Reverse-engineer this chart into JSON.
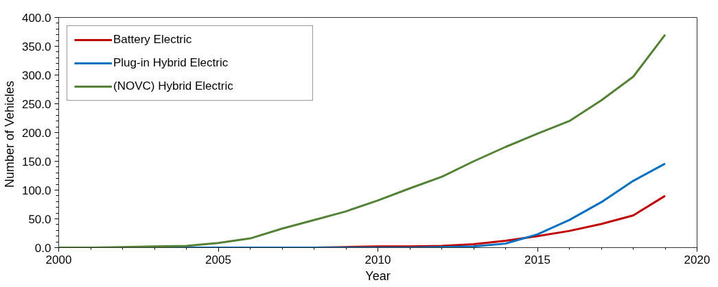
{
  "chart_data": {
    "type": "line",
    "xlabel": "Year",
    "ylabel": "Number  of Vehicles",
    "x": [
      2000,
      2001,
      2002,
      2003,
      2004,
      2005,
      2006,
      2007,
      2008,
      2009,
      2010,
      2011,
      2012,
      2013,
      2014,
      2015,
      2016,
      2017,
      2018,
      2019
    ],
    "series": [
      {
        "name": "Battery Electric",
        "color": "#c00000",
        "values": [
          null,
          null,
          null,
          null,
          null,
          null,
          null,
          0,
          0,
          1,
          2,
          2,
          3,
          6,
          12,
          20,
          29,
          41,
          56,
          90
        ]
      },
      {
        "name": "Plug-in Hybrid Electric",
        "color": "#0070c0",
        "values": [
          null,
          null,
          null,
          0,
          0,
          0,
          0,
          0,
          0,
          0,
          0,
          0,
          1,
          2,
          7,
          23,
          48,
          79,
          116,
          146
        ]
      },
      {
        "name": "(NOVC) Hybrid Electric",
        "color": "#538135",
        "values": [
          0,
          0,
          1,
          2,
          3,
          8,
          16,
          33,
          48,
          63,
          82,
          103,
          123,
          150,
          175,
          198,
          220,
          256,
          297,
          370
        ]
      }
    ],
    "xlim": [
      2000,
      2020
    ],
    "xticks": [
      2000,
      2005,
      2010,
      2015,
      2020
    ],
    "ylim": [
      0,
      400
    ],
    "yticks": [
      {
        "value": 0,
        "label": "0.0"
      },
      {
        "value": 50,
        "label": "50.0"
      },
      {
        "value": 100,
        "label": "100.0"
      },
      {
        "value": 150,
        "label": "150.0"
      },
      {
        "value": 200,
        "label": "200.0"
      },
      {
        "value": 250,
        "label": "250.0"
      },
      {
        "value": 300,
        "label": "300.0"
      },
      {
        "value": 350,
        "label": "350.0"
      },
      {
        "value": 400,
        "label": "400.0"
      }
    ],
    "grid": false,
    "legend": "top left",
    "line_style": "solid",
    "marker": "none"
  }
}
